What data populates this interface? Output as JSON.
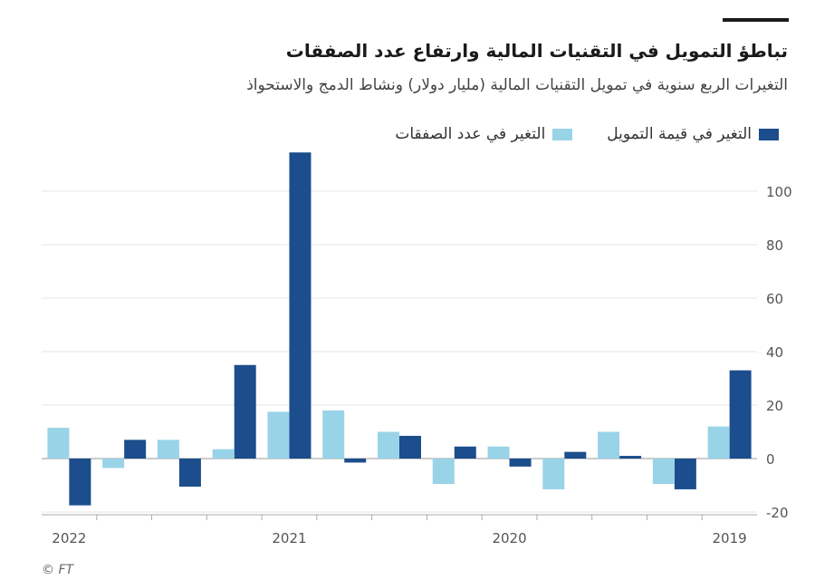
{
  "header": {
    "title": "تباطؤ التمويل في التقنيات المالية وارتفاع عدد الصفقات",
    "subtitle": "التغيرات الربع سنوية في تمويل التقنيات المالية (مليار دولار) ونشاط الدمج والاستحواذ"
  },
  "footer": {
    "source": "© FT"
  },
  "colors": {
    "funding": "#1c4d8c",
    "deals": "#99d3e8",
    "grid": "#e6e6e6",
    "zero": "#999999",
    "text": "#555555"
  },
  "chart_data": {
    "type": "bar",
    "x_direction": "right-to-left",
    "categories": [
      "2019 Q1",
      "2019 Q2",
      "2019 Q3",
      "2019 Q4",
      "2020 Q1",
      "2020 Q2",
      "2020 Q3",
      "2020 Q4",
      "2021 Q1",
      "2021 Q2",
      "2021 Q3",
      "2021 Q4",
      "2022 Q1"
    ],
    "x_tick_labels": [
      "2019",
      "2020",
      "2021",
      "2022"
    ],
    "series": [
      {
        "name": "التغير في قيمة التمويل",
        "color": "#1c4d8c",
        "values": [
          33,
          -11.5,
          1,
          2.5,
          -3,
          4.5,
          8.5,
          -1.5,
          114.5,
          35,
          -10.5,
          7,
          -17.5
        ]
      },
      {
        "name": "التغير في عدد الصفقات",
        "color": "#99d3e8",
        "values": [
          12,
          -9.5,
          10,
          -11.5,
          4.5,
          -9.5,
          10,
          18,
          17.5,
          3.5,
          7,
          -3.5,
          11.5
        ]
      }
    ],
    "ylim": [
      -20,
      115
    ],
    "yticks": [
      -20,
      0,
      20,
      40,
      60,
      80,
      100
    ],
    "grid": true,
    "legend": "top-right"
  }
}
